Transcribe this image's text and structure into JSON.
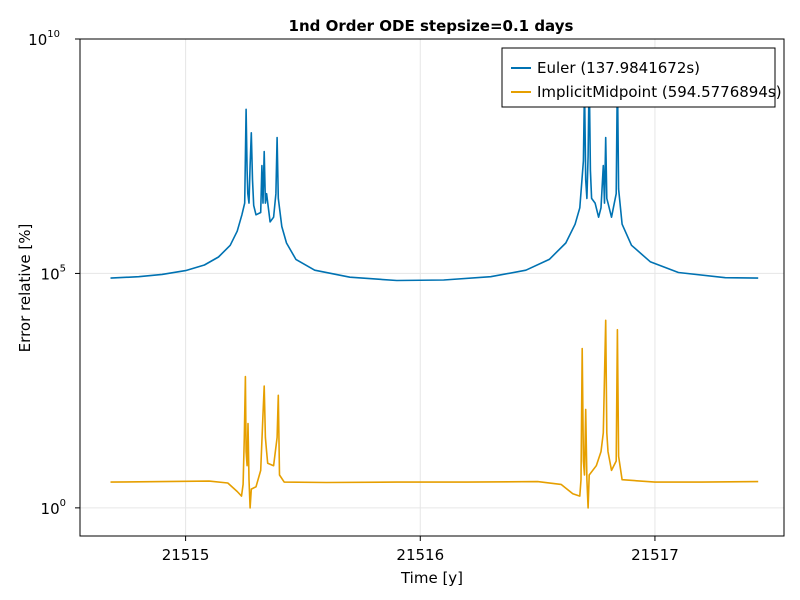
{
  "chart_data": {
    "type": "line",
    "title": "1nd Order ODE stepsize=0.1 days",
    "xlabel": "Time [y]",
    "ylabel": "Error relative [%]",
    "xlim": [
      21514.55,
      21517.55
    ],
    "ylim_log10": [
      -0.6,
      10
    ],
    "y_scale": "log10",
    "grid": true,
    "legend_position": "top-right",
    "x_ticks": [
      21515,
      21516,
      21517
    ],
    "y_ticks": [
      {
        "base": "10",
        "exp": "0",
        "log10": 0
      },
      {
        "base": "10",
        "exp": "5",
        "log10": 5
      },
      {
        "base": "10",
        "exp": "10",
        "log10": 10
      }
    ],
    "series": [
      {
        "name": "Euler (137.9841672s)",
        "color": "#0072b2",
        "points": [
          [
            21514.68,
            4.9
          ],
          [
            21514.8,
            4.93
          ],
          [
            21514.9,
            4.98
          ],
          [
            21515.0,
            5.06
          ],
          [
            21515.08,
            5.18
          ],
          [
            21515.14,
            5.35
          ],
          [
            21515.19,
            5.6
          ],
          [
            21515.22,
            5.9
          ],
          [
            21515.24,
            6.25
          ],
          [
            21515.252,
            6.5
          ],
          [
            21515.255,
            7.5
          ],
          [
            21515.258,
            8.5
          ],
          [
            21515.262,
            7.2
          ],
          [
            21515.265,
            6.7
          ],
          [
            21515.27,
            6.5
          ],
          [
            21515.275,
            7.3
          ],
          [
            21515.28,
            8.0
          ],
          [
            21515.285,
            7.0
          ],
          [
            21515.29,
            6.45
          ],
          [
            21515.3,
            6.25
          ],
          [
            21515.32,
            6.3
          ],
          [
            21515.325,
            7.3
          ],
          [
            21515.33,
            6.5
          ],
          [
            21515.335,
            7.6
          ],
          [
            21515.34,
            6.5
          ],
          [
            21515.345,
            6.7
          ],
          [
            21515.36,
            6.1
          ],
          [
            21515.375,
            6.2
          ],
          [
            21515.385,
            6.7
          ],
          [
            21515.39,
            7.9
          ],
          [
            21515.395,
            6.6
          ],
          [
            21515.41,
            6.0
          ],
          [
            21515.43,
            5.65
          ],
          [
            21515.47,
            5.3
          ],
          [
            21515.55,
            5.07
          ],
          [
            21515.7,
            4.92
          ],
          [
            21515.9,
            4.85
          ],
          [
            21516.1,
            4.86
          ],
          [
            21516.3,
            4.93
          ],
          [
            21516.45,
            5.07
          ],
          [
            21516.55,
            5.3
          ],
          [
            21516.62,
            5.65
          ],
          [
            21516.66,
            6.05
          ],
          [
            21516.68,
            6.4
          ],
          [
            21516.695,
            7.4
          ],
          [
            21516.7,
            9.0
          ],
          [
            21516.705,
            7.0
          ],
          [
            21516.71,
            6.6
          ],
          [
            21516.715,
            7.5
          ],
          [
            21516.72,
            9.3
          ],
          [
            21516.725,
            7.2
          ],
          [
            21516.73,
            6.6
          ],
          [
            21516.745,
            6.5
          ],
          [
            21516.76,
            6.2
          ],
          [
            21516.77,
            6.4
          ],
          [
            21516.78,
            7.3
          ],
          [
            21516.785,
            6.5
          ],
          [
            21516.79,
            7.9
          ],
          [
            21516.795,
            6.6
          ],
          [
            21516.8,
            6.5
          ],
          [
            21516.815,
            6.2
          ],
          [
            21516.835,
            6.7
          ],
          [
            21516.84,
            9.3
          ],
          [
            21516.845,
            6.8
          ],
          [
            21516.86,
            6.05
          ],
          [
            21516.9,
            5.6
          ],
          [
            21516.98,
            5.25
          ],
          [
            21517.1,
            5.02
          ],
          [
            21517.3,
            4.91
          ],
          [
            21517.44,
            4.9
          ]
        ]
      },
      {
        "name": "ImplicitMidpoint (594.5776894s)",
        "color": "#e69f00",
        "points": [
          [
            21514.68,
            0.55
          ],
          [
            21514.9,
            0.56
          ],
          [
            21515.1,
            0.57
          ],
          [
            21515.18,
            0.53
          ],
          [
            21515.22,
            0.35
          ],
          [
            21515.238,
            0.25
          ],
          [
            21515.245,
            0.5
          ],
          [
            21515.25,
            1.5
          ],
          [
            21515.255,
            2.8
          ],
          [
            21515.258,
            1.2
          ],
          [
            21515.262,
            0.9
          ],
          [
            21515.266,
            1.8
          ],
          [
            21515.27,
            0.6
          ],
          [
            21515.275,
            0.0
          ],
          [
            21515.28,
            0.4
          ],
          [
            21515.3,
            0.45
          ],
          [
            21515.32,
            0.8
          ],
          [
            21515.33,
            2.0
          ],
          [
            21515.335,
            2.6
          ],
          [
            21515.34,
            1.5
          ],
          [
            21515.345,
            1.2
          ],
          [
            21515.35,
            0.95
          ],
          [
            21515.375,
            0.9
          ],
          [
            21515.39,
            1.5
          ],
          [
            21515.395,
            2.4
          ],
          [
            21515.4,
            0.7
          ],
          [
            21515.42,
            0.55
          ],
          [
            21515.6,
            0.54
          ],
          [
            21515.9,
            0.55
          ],
          [
            21516.2,
            0.55
          ],
          [
            21516.5,
            0.56
          ],
          [
            21516.6,
            0.5
          ],
          [
            21516.65,
            0.3
          ],
          [
            21516.68,
            0.25
          ],
          [
            21516.685,
            0.6
          ],
          [
            21516.69,
            3.4
          ],
          [
            21516.695,
            1.0
          ],
          [
            21516.7,
            0.7
          ],
          [
            21516.705,
            2.1
          ],
          [
            21516.71,
            0.6
          ],
          [
            21516.715,
            0.0
          ],
          [
            21516.72,
            0.7
          ],
          [
            21516.75,
            0.9
          ],
          [
            21516.77,
            1.2
          ],
          [
            21516.78,
            1.6
          ],
          [
            21516.79,
            4.0
          ],
          [
            21516.795,
            1.6
          ],
          [
            21516.8,
            1.2
          ],
          [
            21516.815,
            0.8
          ],
          [
            21516.835,
            1.0
          ],
          [
            21516.84,
            3.8
          ],
          [
            21516.845,
            1.1
          ],
          [
            21516.86,
            0.6
          ],
          [
            21517.0,
            0.55
          ],
          [
            21517.2,
            0.55
          ],
          [
            21517.44,
            0.56
          ]
        ]
      }
    ]
  }
}
